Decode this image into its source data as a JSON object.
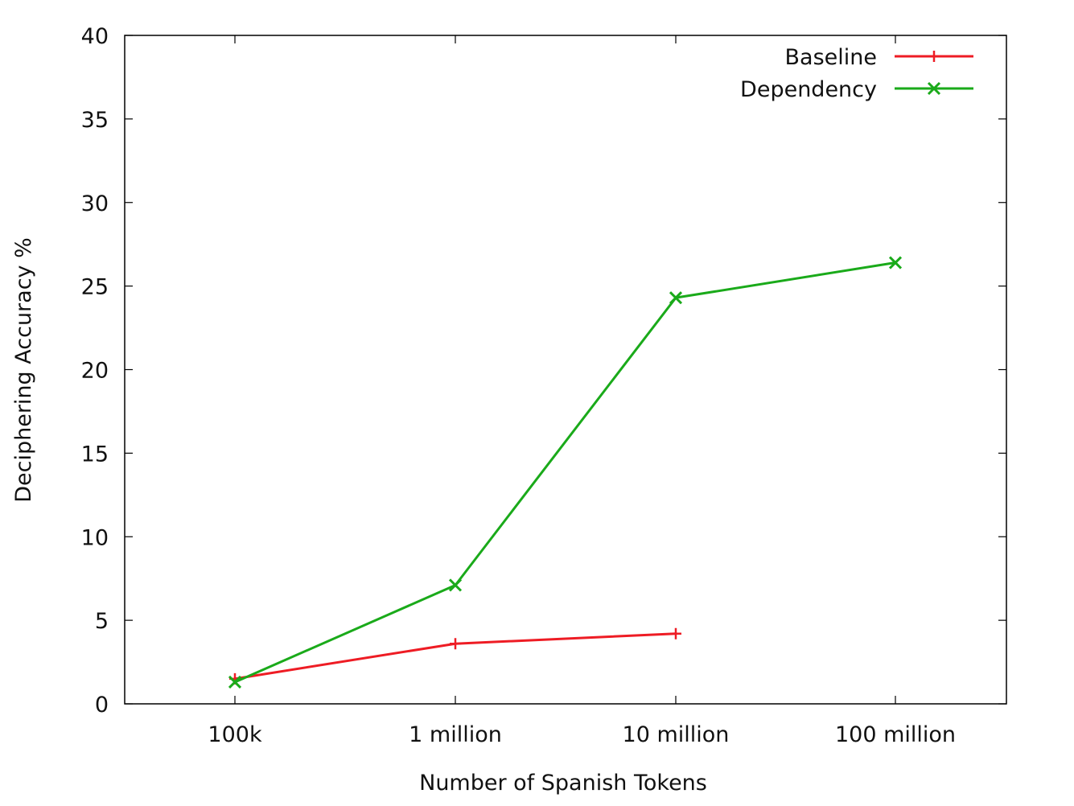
{
  "chart_data": {
    "type": "line",
    "title": "",
    "xlabel": "Number of Spanish Tokens",
    "ylabel": "Deciphering Accuracy %",
    "categories": [
      "100k",
      "1 million",
      "10 million",
      "100 million"
    ],
    "ylim": [
      0,
      40
    ],
    "yticks": [
      "0",
      "5",
      "10",
      "15",
      "20",
      "25",
      "30",
      "35",
      "40"
    ],
    "legend_position": "top-right",
    "grid": false,
    "series": [
      {
        "name": "Baseline",
        "color": "#ee1c24",
        "marker": "plus",
        "values": [
          1.5,
          3.6,
          4.2,
          null
        ]
      },
      {
        "name": "Dependency",
        "color": "#1aaa1a",
        "marker": "cross",
        "values": [
          1.3,
          7.1,
          24.3,
          26.4
        ]
      }
    ]
  }
}
